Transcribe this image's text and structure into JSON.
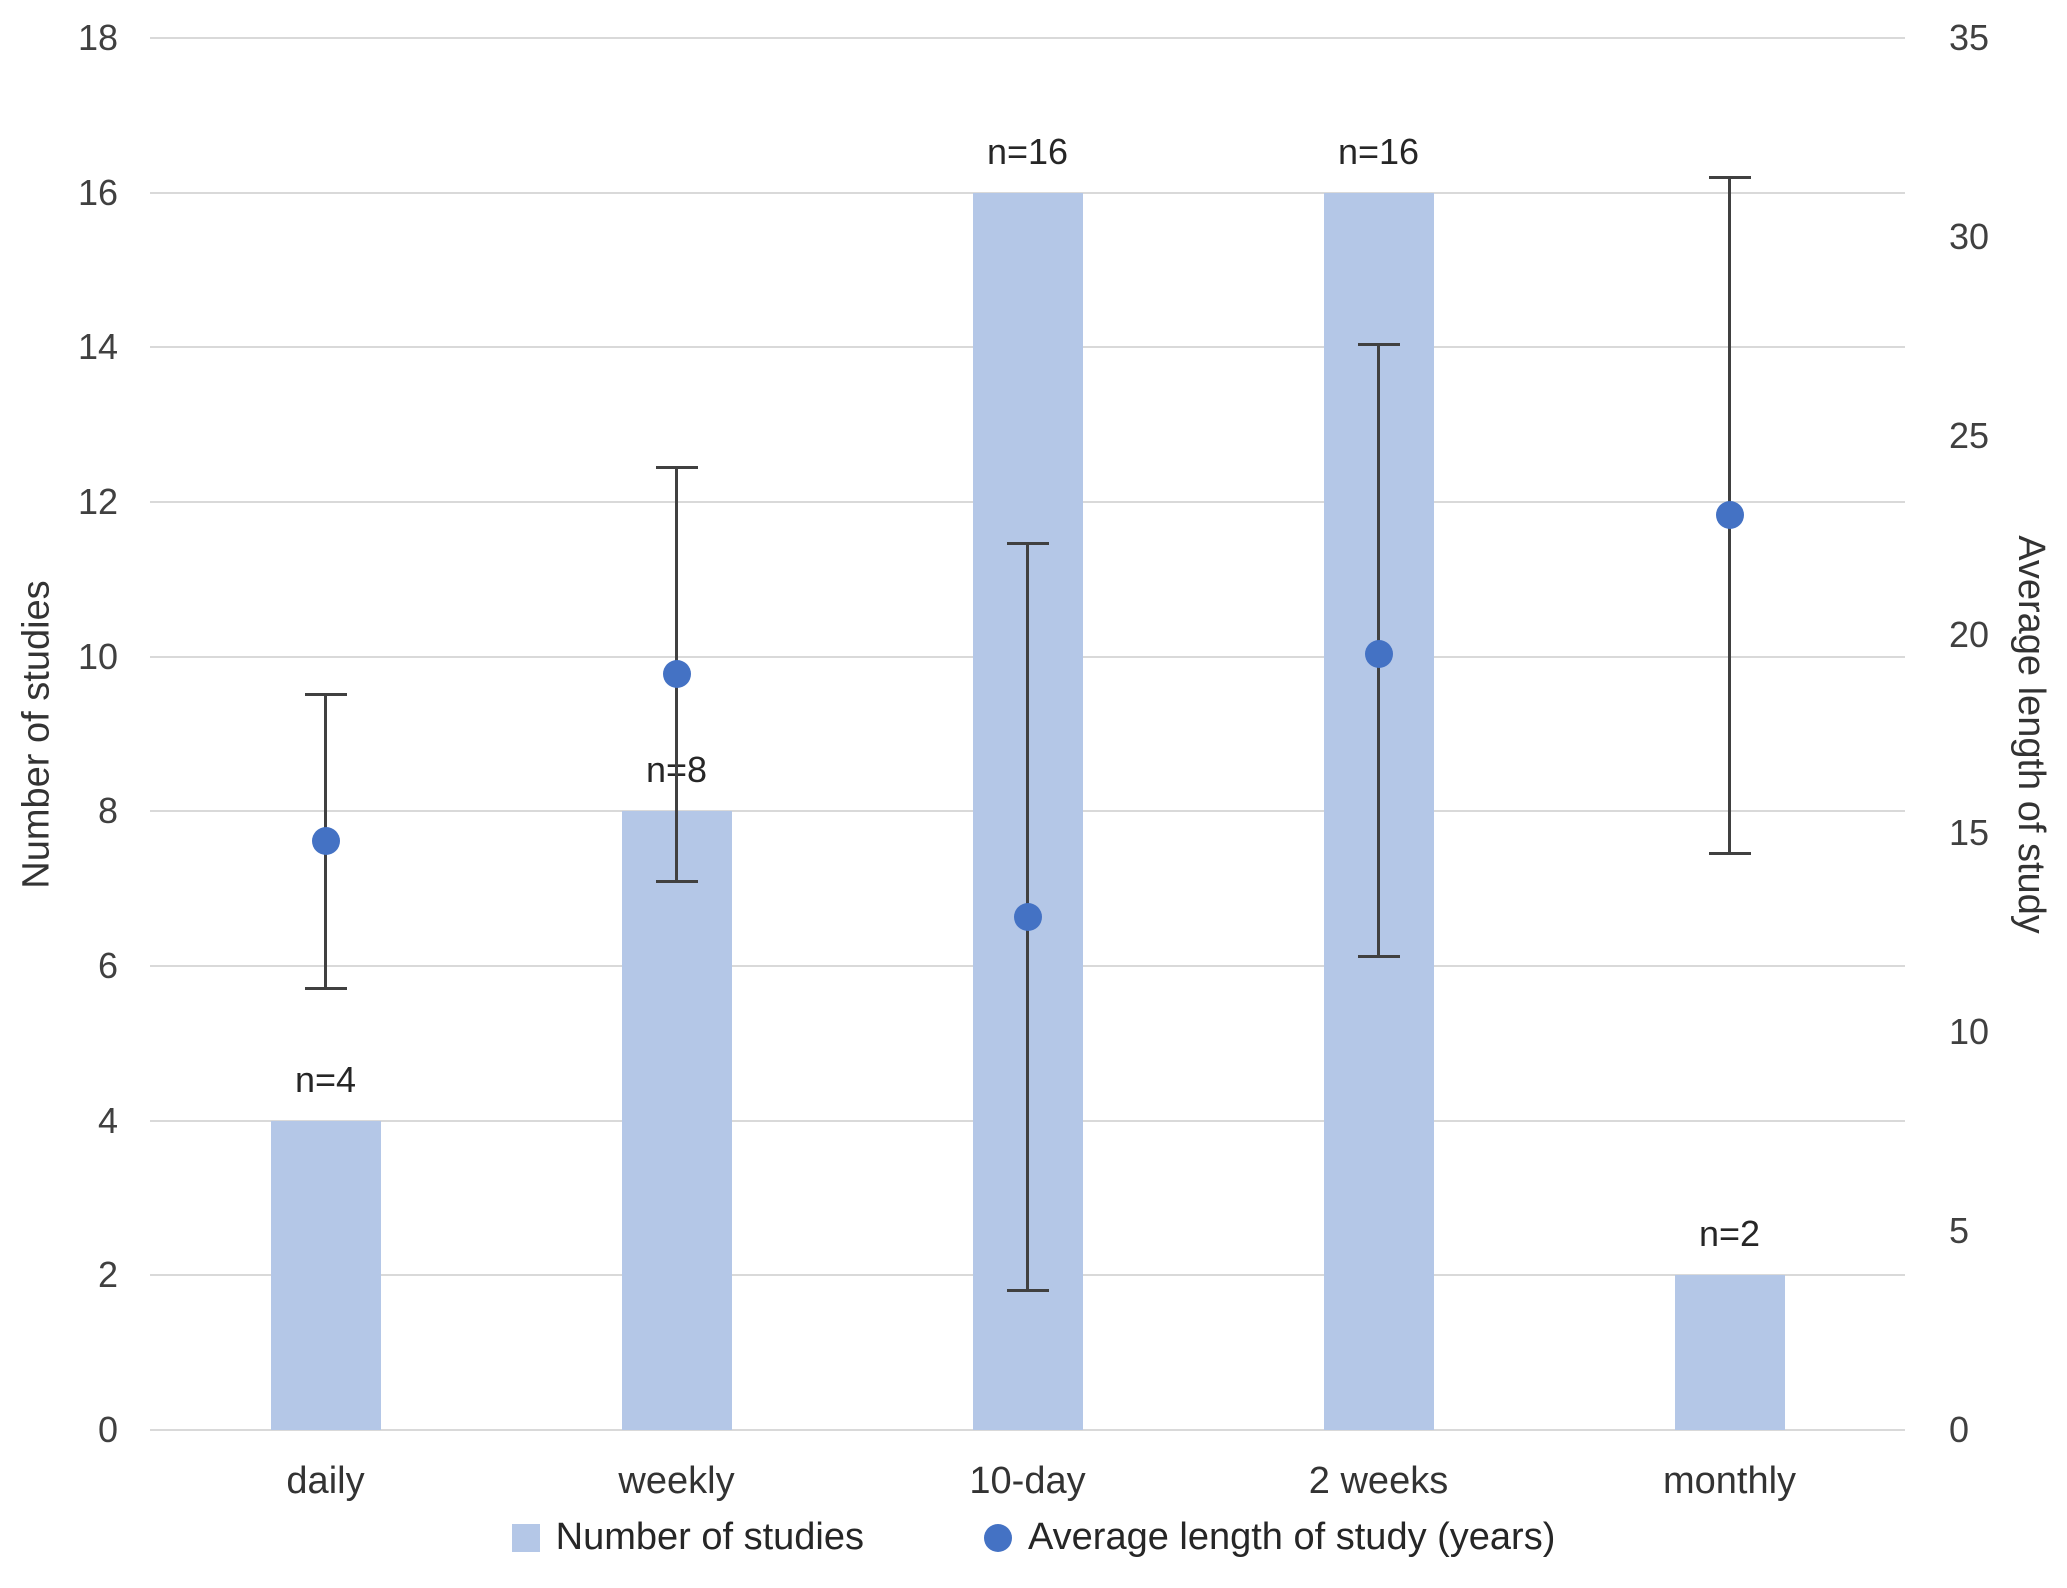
{
  "chart_data": {
    "type": "bar",
    "title": "",
    "categories": [
      "daily",
      "weekly",
      "10-day",
      "2 weeks",
      "monthly"
    ],
    "series": [
      {
        "name": "Number of studies",
        "type": "bar",
        "axis": "left",
        "values": [
          4,
          8,
          16,
          16,
          2
        ],
        "point_labels": [
          "n=4",
          "n=8",
          "n=16",
          "n=16",
          "n=2"
        ],
        "color": "#b4c7e7"
      },
      {
        "name": "Average length of study (years)",
        "type": "scatter",
        "axis": "right",
        "values": [
          14.8,
          19.0,
          12.9,
          19.5,
          23.0
        ],
        "error_low": [
          11.1,
          13.8,
          3.5,
          11.9,
          14.5
        ],
        "error_high": [
          18.5,
          24.2,
          22.3,
          27.3,
          31.5
        ],
        "color": "#4472c4",
        "error_bar_color": "#404040"
      }
    ],
    "left_axis": {
      "label": "Number of studies",
      "min": 0,
      "max": 18,
      "tick_step": 2
    },
    "right_axis": {
      "label": "Average length of study",
      "min": 0,
      "max": 35,
      "tick_step": 5
    },
    "grid": true,
    "gridline_color": "#d9d9d9",
    "legend_position": "bottom"
  }
}
